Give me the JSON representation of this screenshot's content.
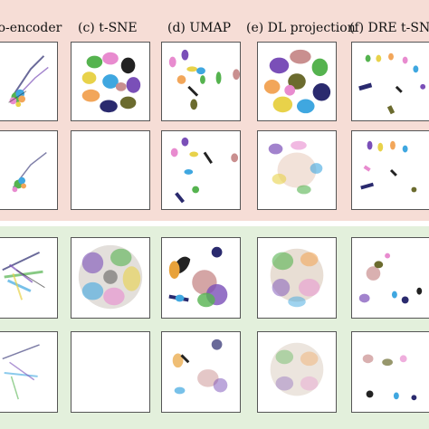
{
  "figure": {
    "columns": [
      {
        "label": "to-encoder"
      },
      {
        "label": "(c) t-SNE"
      },
      {
        "label": "(d) UMAP"
      },
      {
        "label": "(e) DL projection"
      },
      {
        "label": "(f) DRE t-SNE"
      }
    ]
  },
  "colors": {
    "pink_band": "#f6ddd6",
    "green_band": "#e3f0dc",
    "cluster_palette": [
      "#2a2a6e",
      "#e88bcf",
      "#f2a65a",
      "#3fa7e0",
      "#7a4fb8",
      "#55b34f",
      "#e8d24a",
      "#6b6b2e",
      "#c98f8f",
      "#222222"
    ]
  }
}
